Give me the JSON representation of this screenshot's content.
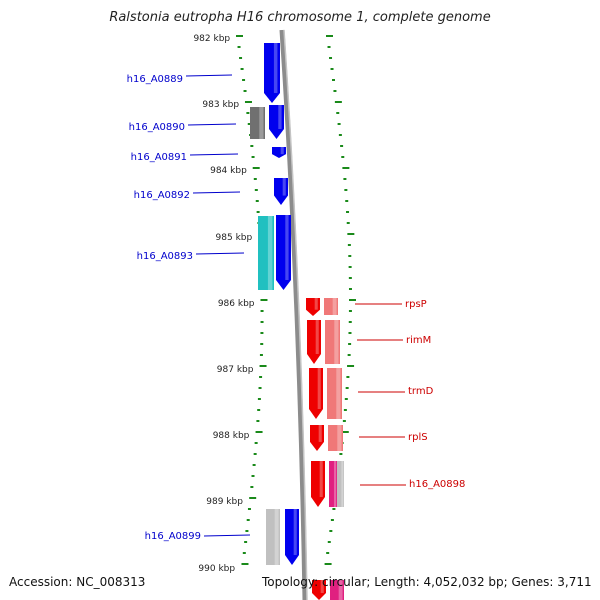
{
  "title": "Ralstonia eutropha H16 chromosome 1, complete genome",
  "footer": {
    "accession": "Accession: NC_008313",
    "summary": "Topology: circular; Length: 4,052,032 bp; Genes: 3,711"
  },
  "colors": {
    "tick": "#1a8a1a",
    "backbone": "#8c8c8c",
    "forward_gene": "#0000ee",
    "forward_label": "#0000cc",
    "reverse_gene": "#ee0000",
    "reverse_label": "#cc0000",
    "cds_gray": "#707070",
    "cds_cyan": "#20c0c0",
    "cds_pink": "#f07878",
    "cds_magenta": "#e02080",
    "cds_light_gray": "#c0c0c0"
  },
  "scale": {
    "labels": [
      "982 kbp",
      "983 kbp",
      "984 kbp",
      "985 kbp",
      "986 kbp",
      "987 kbp",
      "988 kbp",
      "989 kbp",
      "990 kbp"
    ]
  },
  "genes": {
    "forward": [
      "h16_A0889",
      "h16_A0890",
      "h16_A0891",
      "h16_A0892",
      "h16_A0893",
      "h16_A0899"
    ],
    "reverse": [
      "rpsP",
      "rimM",
      "trmD",
      "rplS",
      "h16_A0898"
    ]
  }
}
